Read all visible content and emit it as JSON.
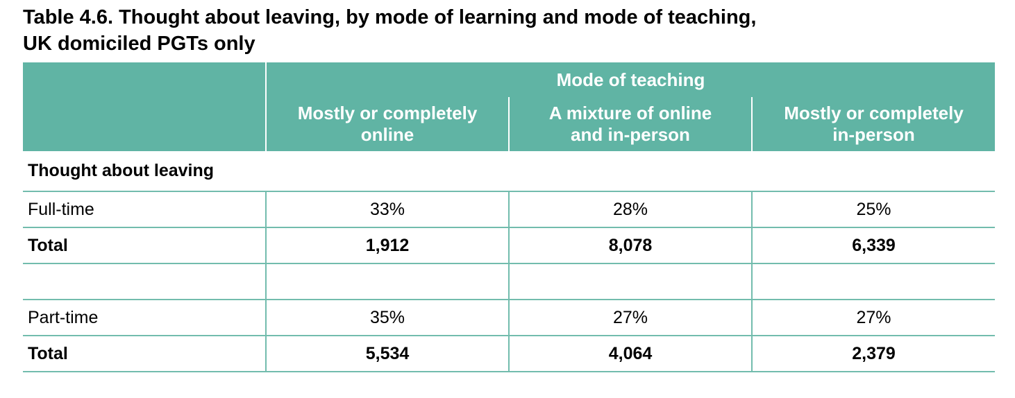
{
  "page": {
    "title": "Table 4.6. Thought about leaving, by mode of learning and mode of teaching,\nUK domiciled PGTs only"
  },
  "table": {
    "spanning_header": "Mode of teaching",
    "columns": [
      {
        "label": "Mostly or completely\nonline"
      },
      {
        "label": "A mixture of online\nand in-person"
      },
      {
        "label": "Mostly or completely\nin-person"
      }
    ],
    "section_label": "Thought about leaving",
    "rows": [
      {
        "label": "Full-time",
        "bold": false,
        "values": [
          "33%",
          "28%",
          "25%"
        ]
      },
      {
        "label": "Total",
        "bold": true,
        "values": [
          "1,912",
          "8,078",
          "6,339"
        ]
      },
      {
        "label": "",
        "bold": false,
        "values": [
          "",
          "",
          ""
        ]
      },
      {
        "label": "Part-time",
        "bold": false,
        "values": [
          "35%",
          "27%",
          "27%"
        ]
      },
      {
        "label": "Total",
        "bold": true,
        "values": [
          "5,534",
          "4,064",
          "2,379"
        ]
      }
    ],
    "colors": {
      "header_background": "#60b4a4",
      "header_text": "#ffffff",
      "grid_line": "#72bcad",
      "body_text": "#000000"
    }
  }
}
